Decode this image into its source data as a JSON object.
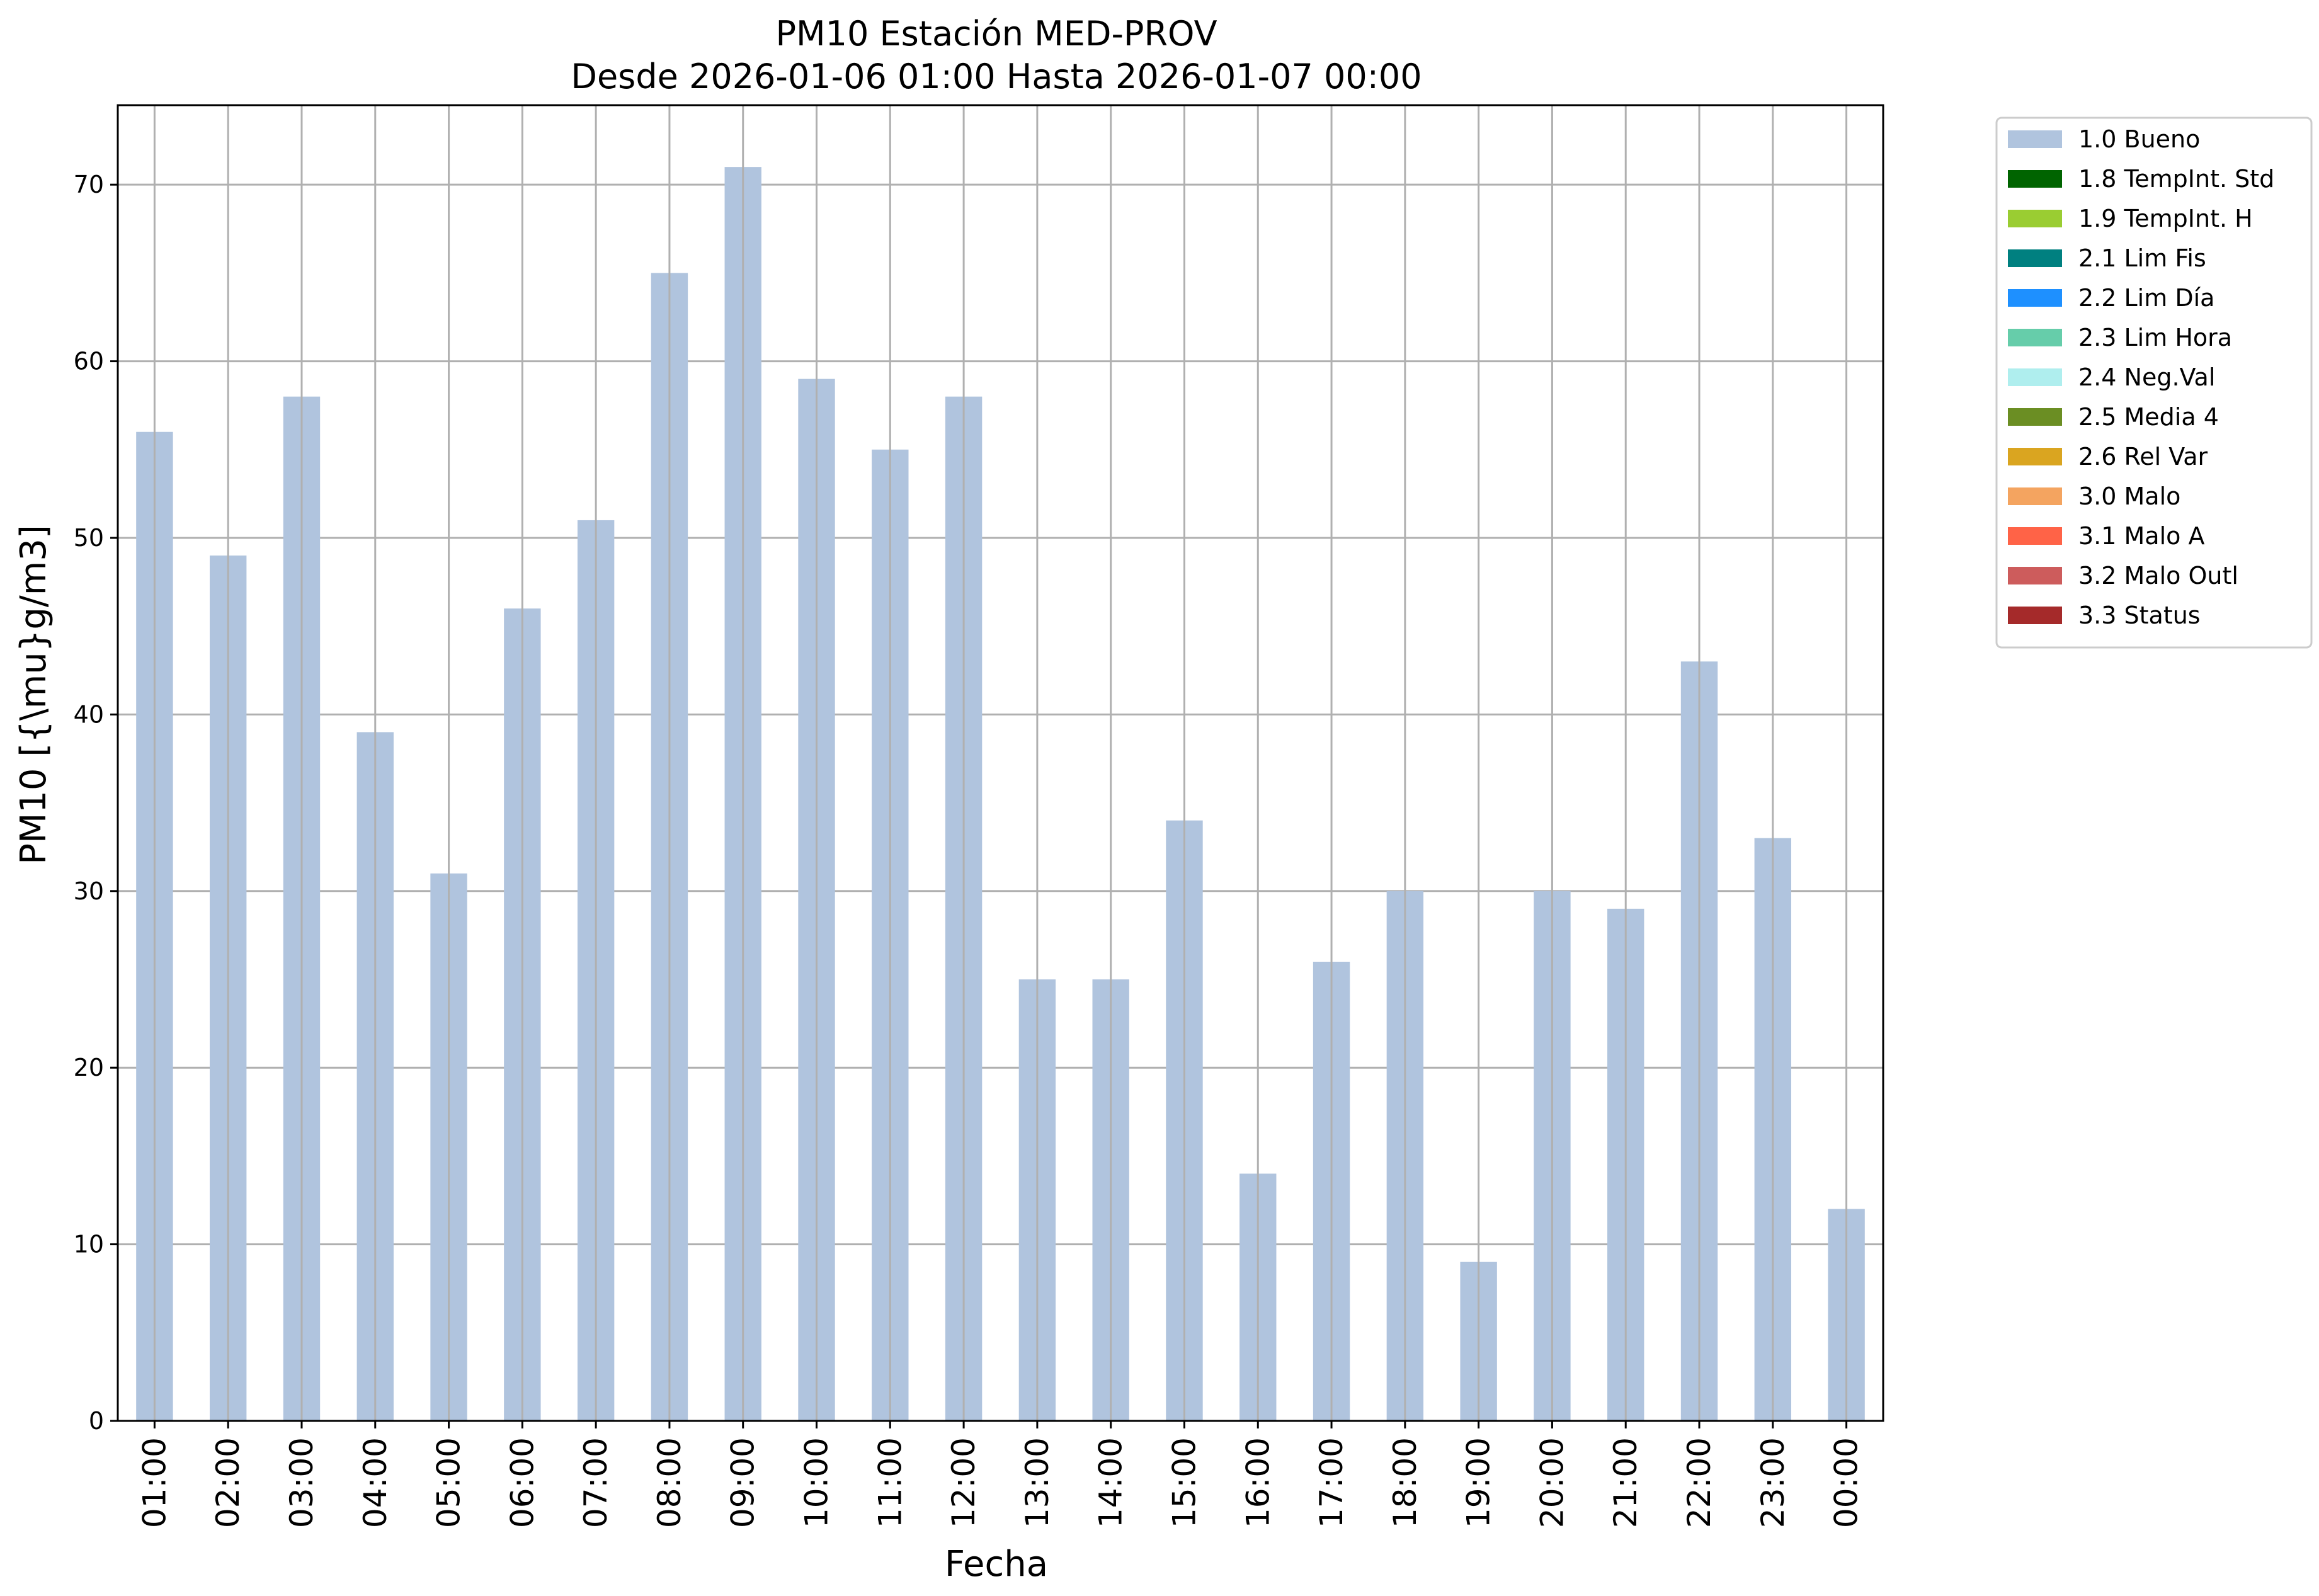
{
  "chart_data": {
    "type": "bar",
    "title": "PM10 Estación MED-PROV",
    "subtitle": "Desde 2026-01-06 01:00 Hasta 2026-01-07 00:00",
    "xlabel": "Fecha",
    "ylabel": "PM10 [{\\mu}g/m3]",
    "categories": [
      "01:00",
      "02:00",
      "03:00",
      "04:00",
      "05:00",
      "06:00",
      "07:00",
      "08:00",
      "09:00",
      "10:00",
      "11:00",
      "12:00",
      "13:00",
      "14:00",
      "15:00",
      "16:00",
      "17:00",
      "18:00",
      "19:00",
      "20:00",
      "21:00",
      "22:00",
      "23:00",
      "00:00"
    ],
    "series": [
      {
        "name": "1.0 Bueno",
        "color": "#b0c4de",
        "values": [
          56,
          49,
          58,
          39,
          31,
          46,
          51,
          65,
          71,
          59,
          55,
          58,
          25,
          25,
          34,
          14,
          26,
          30,
          9,
          30,
          29,
          43,
          33,
          12
        ]
      }
    ],
    "ylim": [
      0,
      74.5
    ],
    "yticks": [
      0,
      10,
      20,
      30,
      40,
      50,
      60,
      70
    ],
    "grid": true,
    "legend_position": "outside-top-right",
    "legend": [
      {
        "label": "1.0 Bueno",
        "color": "#b0c4de"
      },
      {
        "label": "1.8 TempInt. Std",
        "color": "#006400"
      },
      {
        "label": "1.9 TempInt. H",
        "color": "#9acd32"
      },
      {
        "label": "2.1 Lim Fis",
        "color": "#008080"
      },
      {
        "label": "2.2 Lim Día",
        "color": "#1e90ff"
      },
      {
        "label": "2.3 Lim Hora",
        "color": "#66cdaa"
      },
      {
        "label": "2.4 Neg.Val",
        "color": "#afeeee"
      },
      {
        "label": "2.5 Media 4",
        "color": "#6b8e23"
      },
      {
        "label": "2.6 Rel Var",
        "color": "#daa520"
      },
      {
        "label": "3.0 Malo",
        "color": "#f4a460"
      },
      {
        "label": "3.1 Malo A",
        "color": "#ff6347"
      },
      {
        "label": "3.2 Malo Outl",
        "color": "#cd5c5c"
      },
      {
        "label": "3.3 Status",
        "color": "#a52a2a"
      }
    ]
  }
}
